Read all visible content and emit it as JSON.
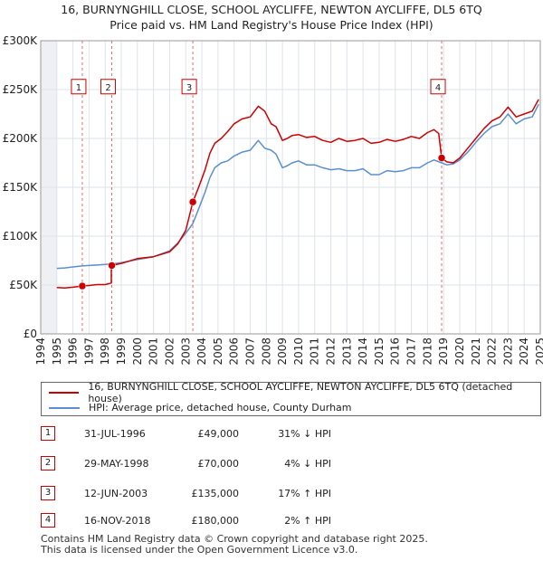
{
  "title_line1": "16, BURNYNGHILL CLOSE, SCHOOL AYCLIFFE, NEWTON AYCLIFFE, DL5 6TQ",
  "title_line2": "Price paid vs. HM Land Registry's House Price Index (HPI)",
  "colors": {
    "property": "#cc0000",
    "hpi": "#5b8fce",
    "grid": "#dde3ea",
    "vline": "#cc3333",
    "bg": "#ffffff"
  },
  "legend": {
    "property_label": "16, BURNYNGHILL CLOSE, SCHOOL AYCLIFFE, NEWTON AYCLIFFE, DL5 6TQ (detached house)",
    "hpi_label": "HPI: Average price, detached house, County Durham"
  },
  "transactions": [
    {
      "num": "1",
      "date": "31-JUL-1996",
      "price": "£49,000",
      "hpi": "31% ↓ HPI"
    },
    {
      "num": "2",
      "date": "29-MAY-1998",
      "price": "£70,000",
      "hpi": "4% ↓ HPI"
    },
    {
      "num": "3",
      "date": "12-JUN-2003",
      "price": "£135,000",
      "hpi": "17% ↑ HPI"
    },
    {
      "num": "4",
      "date": "16-NOV-2018",
      "price": "£180,000",
      "hpi": "2% ↑ HPI"
    }
  ],
  "footer_line1": "Contains HM Land Registry data © Crown copyright and database right 2025.",
  "footer_line2": "This data is licensed under the Open Government Licence v3.0.",
  "chart_data": {
    "type": "line",
    "title": "Price paid vs. HM Land Registry's House Price Index (HPI)",
    "xlabel": "",
    "ylabel": "",
    "xlim": [
      1994,
      2025
    ],
    "ylim": [
      0,
      300000
    ],
    "x_ticks": [
      1994,
      1995,
      1996,
      1997,
      1998,
      1999,
      2000,
      2001,
      2002,
      2003,
      2004,
      2005,
      2006,
      2007,
      2008,
      2009,
      2010,
      2011,
      2012,
      2013,
      2014,
      2015,
      2016,
      2017,
      2018,
      2019,
      2020,
      2021,
      2022,
      2023,
      2024,
      2025
    ],
    "y_ticks": [
      0,
      50000,
      100000,
      150000,
      200000,
      250000,
      300000
    ],
    "y_tick_labels": [
      "£0",
      "£50K",
      "£100K",
      "£150K",
      "£200K",
      "£250K",
      "£300K"
    ],
    "grid": true,
    "shaded_years": [
      1994,
      1995
    ],
    "series": [
      {
        "name": "16, BURNYNGHILL CLOSE, SCHOOL AYCLIFFE, NEWTON AYCLIFFE, DL5 6TQ (detached house)",
        "x": [
          1995.0,
          1995.5,
          1996.0,
          1996.58,
          1997.0,
          1997.5,
          1998.0,
          1998.38,
          1998.38,
          1999.0,
          2000.0,
          2001.0,
          2002.0,
          2002.5,
          2003.0,
          2003.44,
          2003.8,
          2004.2,
          2004.5,
          2004.8,
          2005.2,
          2005.6,
          2006.0,
          2006.5,
          2007.0,
          2007.5,
          2007.9,
          2008.3,
          2008.6,
          2009.0,
          2009.3,
          2009.6,
          2010.0,
          2010.5,
          2011.0,
          2011.5,
          2012.0,
          2012.5,
          2013.0,
          2013.5,
          2014.0,
          2014.5,
          2015.0,
          2015.5,
          2016.0,
          2016.5,
          2017.0,
          2017.5,
          2018.0,
          2018.4,
          2018.7,
          2018.88,
          2019.2,
          2019.6,
          2020.0,
          2020.5,
          2021.0,
          2021.5,
          2022.0,
          2022.5,
          2023.0,
          2023.5,
          2024.0,
          2024.5,
          2024.9
        ],
        "values": [
          47500,
          47000,
          47800,
          49000,
          49500,
          50500,
          50500,
          52000,
          70000,
          72000,
          77000,
          79000,
          84000,
          92000,
          106000,
          135000,
          150000,
          168000,
          185000,
          195000,
          200000,
          207000,
          215000,
          220000,
          222000,
          233000,
          228000,
          215000,
          212000,
          198000,
          200000,
          203000,
          204000,
          201000,
          202000,
          198000,
          196000,
          200000,
          197000,
          198000,
          200000,
          195000,
          196000,
          199000,
          197000,
          199000,
          202000,
          200000,
          206000,
          209000,
          205000,
          180000,
          176000,
          175000,
          180000,
          190000,
          200000,
          210000,
          218000,
          222000,
          232000,
          222000,
          225000,
          228000,
          240000
        ]
      },
      {
        "name": "HPI: Average price, detached house, County Durham",
        "x": [
          1995.0,
          1995.5,
          1996.0,
          1996.58,
          1997.0,
          1997.5,
          1998.0,
          1998.38,
          1999.0,
          2000.0,
          2001.0,
          2002.0,
          2002.5,
          2003.0,
          2003.44,
          2003.8,
          2004.2,
          2004.5,
          2004.8,
          2005.2,
          2005.6,
          2006.0,
          2006.5,
          2007.0,
          2007.5,
          2007.9,
          2008.3,
          2008.6,
          2009.0,
          2009.3,
          2009.6,
          2010.0,
          2010.5,
          2011.0,
          2011.5,
          2012.0,
          2012.5,
          2013.0,
          2013.5,
          2014.0,
          2014.5,
          2015.0,
          2015.5,
          2016.0,
          2016.5,
          2017.0,
          2017.5,
          2018.0,
          2018.4,
          2018.88,
          2019.2,
          2019.6,
          2020.0,
          2020.5,
          2021.0,
          2021.5,
          2022.0,
          2022.5,
          2023.0,
          2023.5,
          2024.0,
          2024.5,
          2024.9
        ],
        "values": [
          67000,
          67500,
          68500,
          69500,
          70000,
          70500,
          71000,
          71500,
          73000,
          76000,
          79000,
          85000,
          93000,
          103000,
          113000,
          128000,
          145000,
          160000,
          170000,
          175000,
          177000,
          182000,
          186000,
          188000,
          198000,
          190000,
          188000,
          184000,
          170000,
          172000,
          175000,
          177000,
          173000,
          173000,
          170000,
          168000,
          169000,
          167000,
          167000,
          169000,
          163000,
          163000,
          167000,
          166000,
          167000,
          170000,
          170000,
          175000,
          178000,
          175000,
          173000,
          174000,
          178000,
          186000,
          196000,
          205000,
          212000,
          215000,
          225000,
          215000,
          220000,
          222000,
          235000
        ]
      }
    ],
    "markers": [
      {
        "label": "1",
        "x": 1996.58,
        "value": 49000
      },
      {
        "label": "2",
        "x": 1998.41,
        "value": 70000
      },
      {
        "label": "3",
        "x": 2003.44,
        "value": 135000
      },
      {
        "label": "4",
        "x": 2018.88,
        "value": 180000
      }
    ],
    "marker_label_value": 253000
  }
}
